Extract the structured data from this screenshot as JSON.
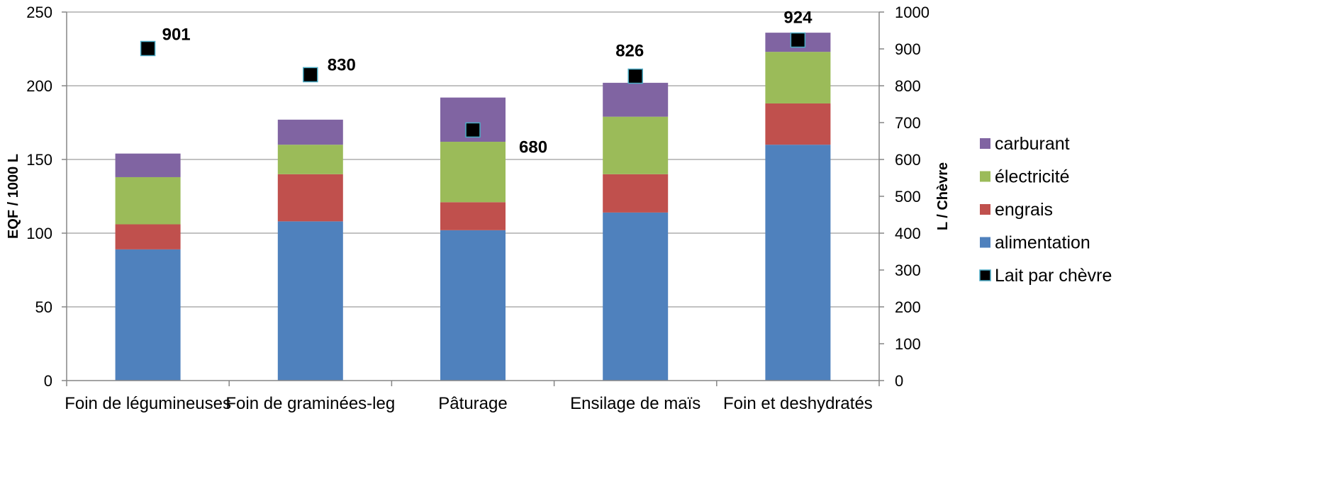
{
  "chart_data": {
    "type": "bar",
    "stacked": true,
    "categories": [
      "Foin de légumineuses",
      "Foin de graminées-leg",
      "Pâturage",
      "Ensilage de maïs",
      "Foin et deshydratés"
    ],
    "series": [
      {
        "name": "alimentation",
        "color": "#4F81BD",
        "axis": "left",
        "values": [
          89,
          108,
          102,
          114,
          160
        ]
      },
      {
        "name": "engrais",
        "color": "#C0504D",
        "axis": "left",
        "values": [
          17,
          32,
          19,
          26,
          28
        ]
      },
      {
        "name": "électricité",
        "color": "#9BBB59",
        "axis": "left",
        "values": [
          32,
          20,
          41,
          39,
          35
        ]
      },
      {
        "name": "carburant",
        "color": "#8064A2",
        "axis": "left",
        "values": [
          16,
          17,
          30,
          23,
          13
        ]
      }
    ],
    "markers": {
      "name": "Lait par chèvre",
      "axis": "right",
      "values": [
        901,
        830,
        680,
        826,
        924
      ],
      "labels": [
        "901",
        "830",
        "680",
        "826",
        "924"
      ],
      "fill": "#000000",
      "stroke": "#4BACC6"
    },
    "ylabel": "EQF / 1000 L",
    "y2label": "L / Chèvre",
    "ylim": [
      0,
      250
    ],
    "y2lim": [
      0,
      1000
    ],
    "yticks": [
      "0",
      "50",
      "100",
      "150",
      "200",
      "250"
    ],
    "y2ticks": [
      "0",
      "100",
      "200",
      "300",
      "400",
      "500",
      "600",
      "700",
      "800",
      "900",
      "1000"
    ],
    "legend_order": [
      "carburant",
      "électricité",
      "engrais",
      "alimentation",
      "Lait par chèvre"
    ],
    "legend_position": "right",
    "grid": true
  }
}
